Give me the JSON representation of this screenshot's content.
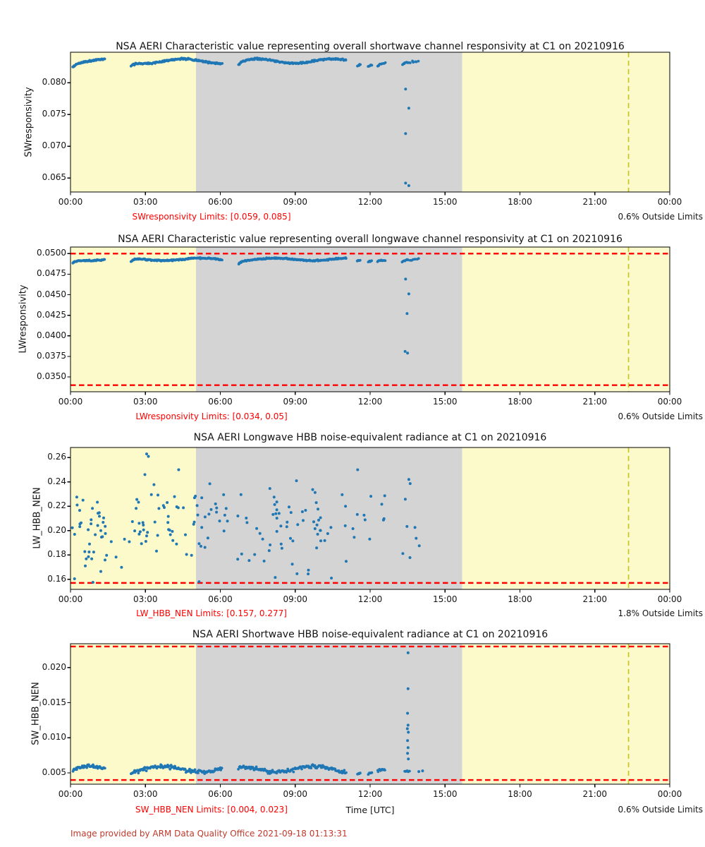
{
  "page": {
    "footer": "Image provided by ARM Data Quality Office 2021-09-18 01:13:31"
  },
  "colors": {
    "band_yellow": "#fcfacb",
    "band_gray": "#d4d4d4",
    "point_blue": "#1f77b4",
    "limit_red": "#ff0000",
    "vline_yellow": "#c9c41f",
    "axis_black": "#000000"
  },
  "x_axis": {
    "label": "Time [UTC]",
    "tick_hours": [
      0,
      3,
      6,
      9,
      12,
      15,
      18,
      21,
      24
    ],
    "tick_labels": [
      "00:00",
      "03:00",
      "06:00",
      "09:00",
      "12:00",
      "15:00",
      "18:00",
      "21:00",
      "00:00"
    ],
    "range_hours": [
      0,
      24
    ]
  },
  "shading": {
    "gray_region_hours": [
      5.02,
      15.68
    ],
    "yellow_region_hours": [
      [
        0,
        5.02
      ],
      [
        15.68,
        24
      ]
    ],
    "vline_hour": 22.35
  },
  "chart_data": [
    {
      "type": "scatter",
      "title": "NSA AERI Characteristic value representing overall shortwave channel responsivity at C1 on 20210916",
      "ylabel": "SWresponsivity",
      "xlabel": "",
      "ylim": [
        0.0628,
        0.0848
      ],
      "yticks": [
        {
          "v": 0.08,
          "label": "0.080"
        },
        {
          "v": 0.075,
          "label": "0.075"
        },
        {
          "v": 0.07,
          "label": "0.070"
        },
        {
          "v": 0.065,
          "label": "0.065"
        }
      ],
      "limit_values": [
        0.059,
        0.085
      ],
      "limits_label": "SWresponsivity Limits: [0.059, 0.085]",
      "outside_label": "0.6% Outside Limits",
      "seed": 11,
      "series": {
        "bands": [
          {
            "t0": 0.08,
            "t1": 1.38,
            "n": 55,
            "base": 0.0834,
            "jitter": 0.00022,
            "wave": 0.00035,
            "dip": 0.0007
          },
          {
            "t0": 2.42,
            "t1": 6.08,
            "n": 150,
            "base": 0.0834,
            "jitter": 0.00022,
            "wave": 0.00035,
            "dip": 0.0007
          },
          {
            "t0": 6.72,
            "t1": 11.05,
            "n": 170,
            "base": 0.0834,
            "jitter": 0.00022,
            "wave": 0.00035,
            "dip": 0.0007
          },
          {
            "t0": 11.48,
            "t1": 11.62,
            "n": 5,
            "base": 0.0831,
            "jitter": 0.0002,
            "wave": 0.0002,
            "dip": 0.0004
          },
          {
            "t0": 11.92,
            "t1": 12.08,
            "n": 6,
            "base": 0.0831,
            "jitter": 0.0002,
            "wave": 0.0002,
            "dip": 0.0004
          },
          {
            "t0": 12.28,
            "t1": 12.62,
            "n": 10,
            "base": 0.0832,
            "jitter": 0.0002,
            "wave": 0.0002,
            "dip": 0.0004
          },
          {
            "t0": 13.28,
            "t1": 13.55,
            "n": 8,
            "base": 0.0831,
            "jitter": 0.0002,
            "wave": 0.0002,
            "dip": 0.0005
          },
          {
            "t0": 13.6,
            "t1": 13.95,
            "n": 6,
            "base": 0.0833,
            "jitter": 0.0002,
            "wave": 0.0002,
            "dip": 0.0004
          }
        ],
        "points": [
          [
            13.42,
            0.079
          ],
          [
            13.55,
            0.076
          ],
          [
            13.42,
            0.072
          ],
          [
            13.42,
            0.0642
          ],
          [
            13.55,
            0.0638
          ]
        ]
      }
    },
    {
      "type": "scatter",
      "title": "NSA AERI Characteristic value representing overall longwave channel responsivity at C1 on 20210916",
      "ylabel": "LWresponsivity",
      "xlabel": "",
      "ylim": [
        0.0332,
        0.0508
      ],
      "yticks": [
        {
          "v": 0.05,
          "label": "0.0500"
        },
        {
          "v": 0.0475,
          "label": "0.0475"
        },
        {
          "v": 0.045,
          "label": "0.0450"
        },
        {
          "v": 0.0425,
          "label": "0.0425"
        },
        {
          "v": 0.04,
          "label": "0.0400"
        },
        {
          "v": 0.0375,
          "label": "0.0375"
        },
        {
          "v": 0.035,
          "label": "0.0350"
        }
      ],
      "limit_values": [
        0.034,
        0.05
      ],
      "limits_label": "LWresponsivity Limits: [0.034, 0.05]",
      "outside_label": "0.6% Outside Limits",
      "seed": 22,
      "series": {
        "bands": [
          {
            "t0": 0.08,
            "t1": 1.38,
            "n": 55,
            "base": 0.0493,
            "jitter": 0.00013,
            "wave": 0.00015,
            "dip": 0.0004
          },
          {
            "t0": 2.42,
            "t1": 6.08,
            "n": 150,
            "base": 0.0493,
            "jitter": 0.00013,
            "wave": 0.00015,
            "dip": 0.0004
          },
          {
            "t0": 6.72,
            "t1": 11.05,
            "n": 170,
            "base": 0.0493,
            "jitter": 0.00013,
            "wave": 0.00015,
            "dip": 0.0004
          },
          {
            "t0": 11.48,
            "t1": 11.62,
            "n": 5,
            "base": 0.0492,
            "jitter": 0.0001,
            "wave": 0.0001,
            "dip": 0.0002
          },
          {
            "t0": 11.92,
            "t1": 12.08,
            "n": 6,
            "base": 0.0492,
            "jitter": 0.0001,
            "wave": 0.0001,
            "dip": 0.0002
          },
          {
            "t0": 12.28,
            "t1": 12.62,
            "n": 10,
            "base": 0.0493,
            "jitter": 0.0001,
            "wave": 0.0001,
            "dip": 0.0002
          },
          {
            "t0": 13.28,
            "t1": 13.55,
            "n": 8,
            "base": 0.0493,
            "jitter": 0.0001,
            "wave": 0.0001,
            "dip": 0.0003
          },
          {
            "t0": 13.6,
            "t1": 13.95,
            "n": 6,
            "base": 0.0493,
            "jitter": 0.0001,
            "wave": 0.0001,
            "dip": 0.0002
          }
        ],
        "points": [
          [
            13.42,
            0.0469
          ],
          [
            13.55,
            0.0451
          ],
          [
            13.48,
            0.0427
          ],
          [
            13.4,
            0.0381
          ],
          [
            13.5,
            0.0379
          ]
        ]
      }
    },
    {
      "type": "scatter",
      "title": "NSA AERI Longwave HBB noise-equivalent radiance at C1 on 20210916",
      "ylabel": "LW_HBB_NEN",
      "xlabel": "",
      "ylim": [
        0.1517,
        0.2683
      ],
      "yticks": [
        {
          "v": 0.26,
          "label": "0.26"
        },
        {
          "v": 0.24,
          "label": "0.24"
        },
        {
          "v": 0.22,
          "label": "0.22"
        },
        {
          "v": 0.2,
          "label": "0.20"
        },
        {
          "v": 0.18,
          "label": "0.18"
        },
        {
          "v": 0.16,
          "label": "0.16"
        }
      ],
      "limit_values": [
        0.157,
        0.277
      ],
      "limits_label": "LW_HBB_NEN Limits: [0.157, 0.277]",
      "outside_label": "1.8% Outside Limits",
      "seed": 33,
      "series": {
        "clouds": [
          {
            "t0": 0.05,
            "t1": 1.45,
            "n": 36,
            "vmin": 0.158,
            "vmax": 0.228
          },
          {
            "t0": 1.5,
            "t1": 2.4,
            "n": 5,
            "vmin": 0.165,
            "vmax": 0.21
          },
          {
            "t0": 2.42,
            "t1": 5.05,
            "n": 44,
            "vmin": 0.162,
            "vmax": 0.252
          },
          {
            "t0": 5.05,
            "t1": 6.3,
            "n": 20,
            "vmin": 0.168,
            "vmax": 0.239
          },
          {
            "t0": 6.6,
            "t1": 11.1,
            "n": 62,
            "vmin": 0.16,
            "vmax": 0.238
          },
          {
            "t0": 11.3,
            "t1": 12.7,
            "n": 11,
            "vmin": 0.178,
            "vmax": 0.235
          },
          {
            "t0": 13.2,
            "t1": 14.0,
            "n": 8,
            "vmin": 0.165,
            "vmax": 0.242
          }
        ],
        "points": [
          [
            3.05,
            0.263
          ],
          [
            3.12,
            0.261
          ],
          [
            2.98,
            0.246
          ],
          [
            4.33,
            0.25
          ],
          [
            5.58,
            0.2385
          ],
          [
            11.5,
            0.25
          ],
          [
            9.05,
            0.241
          ],
          [
            13.55,
            0.242
          ],
          [
            0.9,
            0.1575
          ],
          [
            5.15,
            0.158
          ],
          [
            8.2,
            0.1615
          ],
          [
            10.45,
            0.161
          ],
          [
            0.25,
            0.2275
          ],
          [
            0.5,
            0.225
          ]
        ]
      }
    },
    {
      "type": "scatter",
      "title": "NSA AERI Shortwave HBB noise-equivalent radiance at C1 on 20210916",
      "ylabel": "SW_HBB_NEN",
      "xlabel": "Time [UTC]",
      "ylim": [
        0.0034,
        0.0234
      ],
      "yticks": [
        {
          "v": 0.02,
          "label": "0.020"
        },
        {
          "v": 0.015,
          "label": "0.015"
        },
        {
          "v": 0.01,
          "label": "0.010"
        },
        {
          "v": 0.005,
          "label": "0.005"
        }
      ],
      "limit_values": [
        0.004,
        0.023
      ],
      "limits_label": "SW_HBB_NEN Limits: [0.004, 0.023]",
      "outside_label": "0.6% Outside Limits",
      "seed": 44,
      "series": {
        "bands": [
          {
            "t0": 0.08,
            "t1": 1.38,
            "n": 48,
            "base": 0.00555,
            "jitter": 0.00045,
            "wave": 0.0004,
            "dip": 0.0004,
            "clip": [
              0.0043,
              0.0069
            ]
          },
          {
            "t0": 2.42,
            "t1": 6.08,
            "n": 120,
            "base": 0.00555,
            "jitter": 0.00045,
            "wave": 0.0004,
            "dip": 0.0004,
            "clip": [
              0.0043,
              0.0069
            ]
          },
          {
            "t0": 6.72,
            "t1": 11.05,
            "n": 140,
            "base": 0.00555,
            "jitter": 0.00045,
            "wave": 0.0004,
            "dip": 0.0004,
            "clip": [
              0.0043,
              0.0069
            ]
          },
          {
            "t0": 11.48,
            "t1": 11.62,
            "n": 4,
            "base": 0.0051,
            "jitter": 0.0002,
            "wave": 0.0001,
            "dip": 0.0002,
            "clip": [
              0.0044,
              0.006
            ]
          },
          {
            "t0": 11.92,
            "t1": 12.08,
            "n": 5,
            "base": 0.0051,
            "jitter": 0.0002,
            "wave": 0.0001,
            "dip": 0.0002,
            "clip": [
              0.0044,
              0.006
            ]
          },
          {
            "t0": 12.28,
            "t1": 12.62,
            "n": 9,
            "base": 0.0053,
            "jitter": 0.0003,
            "wave": 0.0002,
            "dip": 0.0002,
            "clip": [
              0.0044,
              0.0062
            ]
          },
          {
            "t0": 13.35,
            "t1": 13.6,
            "n": 6,
            "base": 0.0053,
            "jitter": 0.0003,
            "wave": 0.0002,
            "dip": 0.0002,
            "clip": [
              0.0044,
              0.0062
            ]
          }
        ],
        "points": [
          [
            13.52,
            0.0221
          ],
          [
            13.52,
            0.017
          ],
          [
            13.5,
            0.0135
          ],
          [
            13.52,
            0.0118
          ],
          [
            13.49,
            0.0113
          ],
          [
            13.53,
            0.0108
          ],
          [
            13.5,
            0.0096
          ],
          [
            13.52,
            0.0086
          ],
          [
            13.5,
            0.0078
          ],
          [
            13.53,
            0.007
          ],
          [
            13.95,
            0.0052
          ],
          [
            14.1,
            0.0053
          ]
        ]
      }
    }
  ]
}
